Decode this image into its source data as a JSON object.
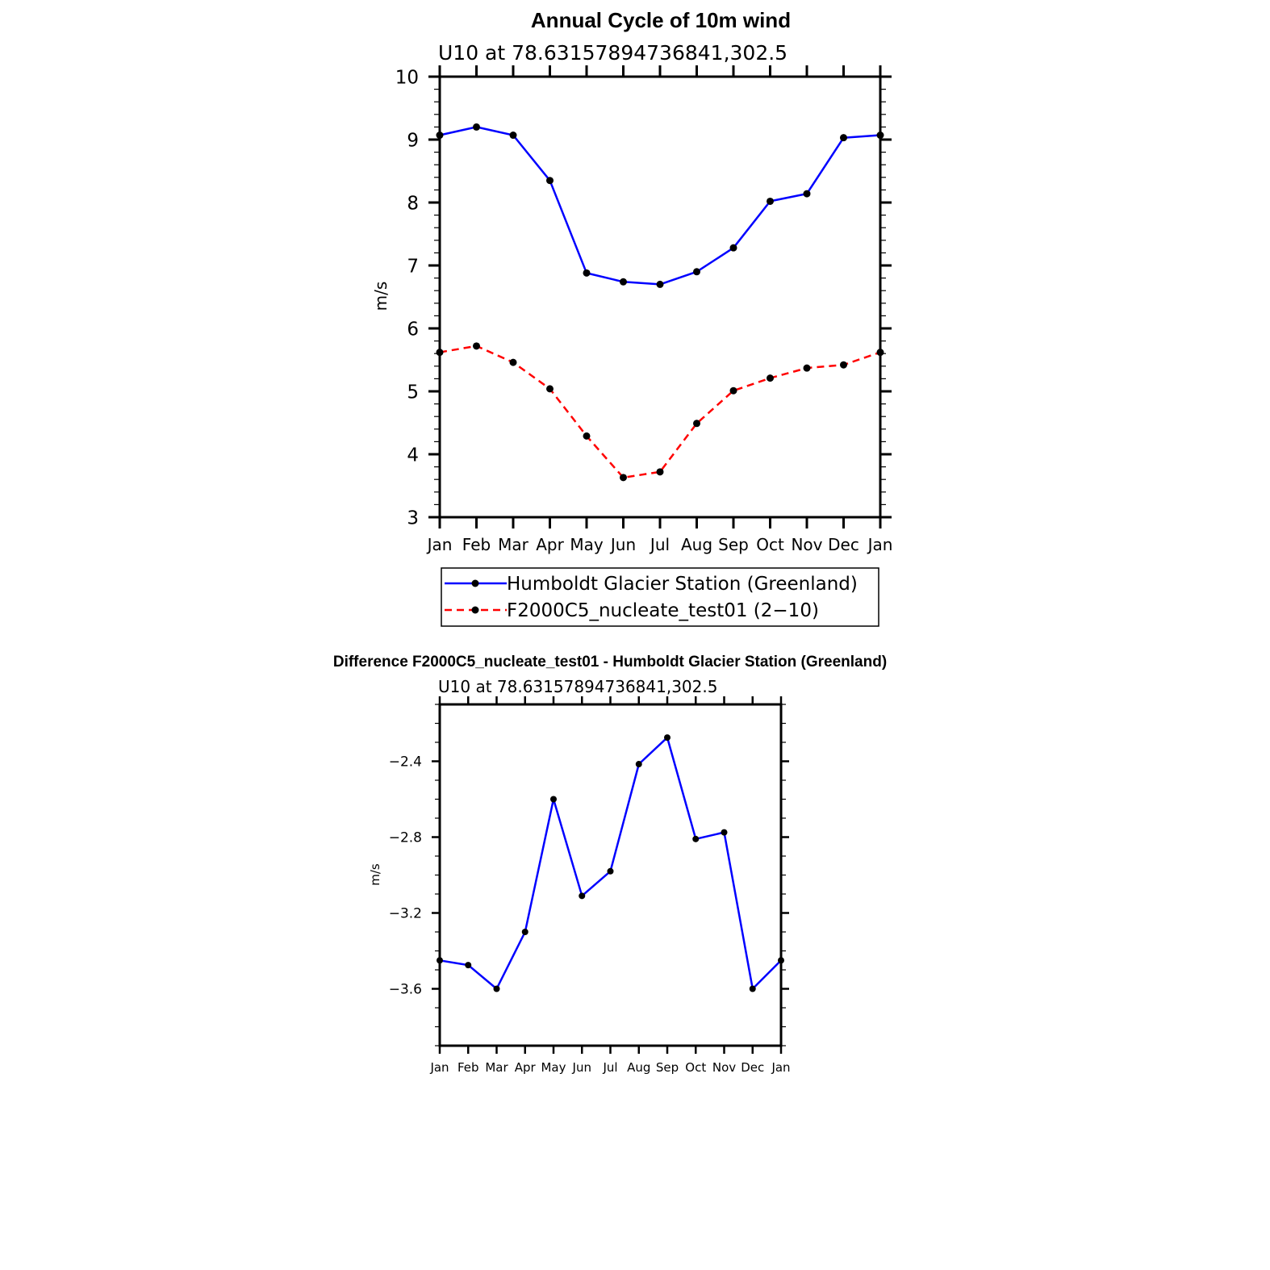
{
  "chart_data": [
    {
      "type": "line",
      "title": "Annual Cycle of 10m wind",
      "subtitle": "U10  at  78.63157894736841,302.5",
      "xlabel": "",
      "ylabel": "m/s",
      "categories": [
        "Jan",
        "Feb",
        "Mar",
        "Apr",
        "May",
        "Jun",
        "Jul",
        "Aug",
        "Sep",
        "Oct",
        "Nov",
        "Dec",
        "Jan"
      ],
      "ylim": [
        3,
        10
      ],
      "yticks": [
        "3",
        "4",
        "5",
        "6",
        "7",
        "8",
        "9",
        "10"
      ],
      "series": [
        {
          "name": "Humboldt Glacier Station (Greenland)",
          "color": "#0000ff",
          "dash": "solid",
          "values": [
            9.07,
            9.2,
            9.07,
            8.35,
            6.88,
            6.74,
            6.7,
            6.9,
            7.28,
            8.02,
            8.14,
            9.03,
            9.07
          ]
        },
        {
          "name": "F2000C5_nucleate_test01 (2−10)",
          "color": "#ff0000",
          "dash": "dashed",
          "values": [
            5.62,
            5.72,
            5.46,
            5.04,
            4.29,
            3.63,
            3.72,
            4.49,
            5.01,
            5.21,
            5.37,
            5.42,
            5.62
          ]
        }
      ],
      "legend": "bottom"
    },
    {
      "type": "line",
      "title": "Difference F2000C5_nucleate_test01 - Humboldt Glacier Station (Greenland)",
      "subtitle": "U10  at  78.63157894736841,302.5",
      "xlabel": "",
      "ylabel": "m/s",
      "categories": [
        "Jan",
        "Feb",
        "Mar",
        "Apr",
        "May",
        "Jun",
        "Jul",
        "Aug",
        "Sep",
        "Oct",
        "Nov",
        "Dec",
        "Jan"
      ],
      "ylim": [
        -3.9,
        -2.1
      ],
      "yticks": [
        "−3.6",
        "−3.2",
        "−2.8",
        "−2.4"
      ],
      "ytick_values": [
        -3.6,
        -3.2,
        -2.8,
        -2.4
      ],
      "series": [
        {
          "name": "Difference",
          "color": "#0000ff",
          "dash": "solid",
          "values": [
            -3.45,
            -3.475,
            -3.6,
            -3.3,
            -2.6,
            -3.11,
            -2.98,
            -2.415,
            -2.275,
            -2.81,
            -2.775,
            -3.6,
            -3.45
          ]
        }
      ]
    }
  ]
}
